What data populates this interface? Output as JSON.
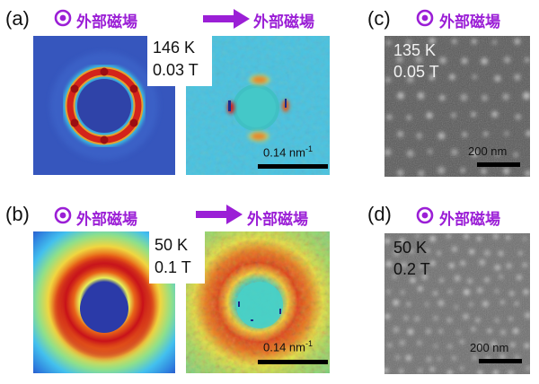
{
  "panels": {
    "a": {
      "letter": "(a)",
      "field_perpendicular_label": "外部磁場",
      "field_inplane_label": "外部磁場",
      "temperature": "146 K",
      "field": "0.03 T",
      "scale_value": "0.14 nm",
      "scale_exp": "-1"
    },
    "b": {
      "letter": "(b)",
      "field_perpendicular_label": "外部磁場",
      "field_inplane_label": "外部磁場",
      "temperature": "50 K",
      "field": "0.1 T",
      "scale_value": "0.14 nm",
      "scale_exp": "-1"
    },
    "c": {
      "letter": "(c)",
      "field_label": "外部磁場",
      "temperature": "135 K",
      "field": "0.05 T",
      "scale": "200 nm"
    },
    "d": {
      "letter": "(d)",
      "field_label": "外部磁場",
      "temperature": "50 K",
      "field": "0.2 T",
      "scale": "200 nm"
    }
  },
  "colors": {
    "field_symbol": "#9b1fd6",
    "map_background": "#2e4fb8",
    "map_cyan": "#45c6e8",
    "ring_red": "#d8141c",
    "tem_gray": "#5a5a5a"
  },
  "icons": {
    "out_of_plane": "dot-in-circle-icon",
    "in_plane": "right-arrow-icon"
  }
}
